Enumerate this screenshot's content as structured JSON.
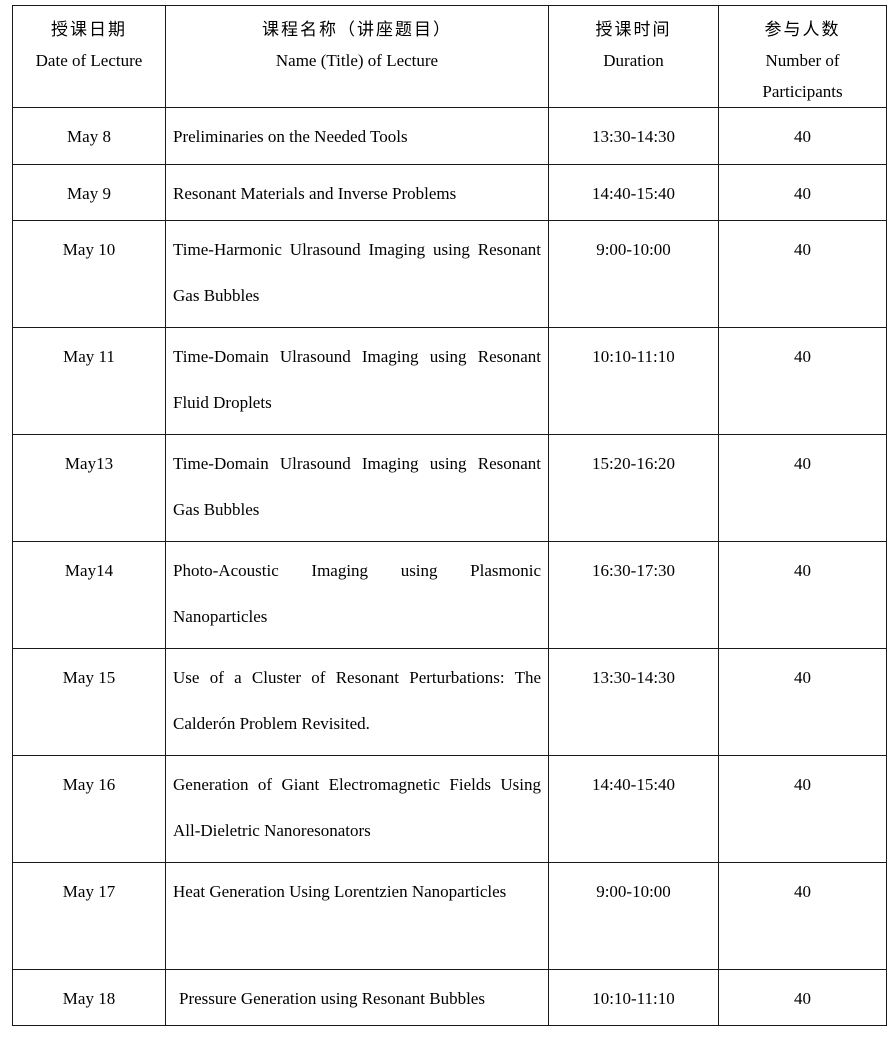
{
  "table": {
    "header": {
      "date_zh": "授课日期",
      "date_en": "Date of Lecture",
      "name_zh": "课程名称（讲座题目）",
      "name_en": "Name (Title) of Lecture",
      "duration_zh": "授课时间",
      "duration_en": "Duration",
      "participants_zh": "参与人数",
      "participants_en": "Number of Participants"
    },
    "rows": [
      {
        "date": "May 8",
        "name": "Preliminaries on the Needed Tools",
        "duration": "13:30-14:30",
        "participants": "40"
      },
      {
        "date": "May 9",
        "name": "Resonant Materials and Inverse Problems",
        "duration": "14:40-15:40",
        "participants": "40"
      },
      {
        "date": "May 10",
        "name": "Time-Harmonic Ulrasound Imaging using Resonant Gas Bubbles",
        "duration": "9:00-10:00",
        "participants": "40"
      },
      {
        "date": "May 11",
        "name": "Time-Domain Ulrasound Imaging using Resonant Fluid Droplets",
        "duration": "10:10-11:10",
        "participants": "40"
      },
      {
        "date": "May13",
        "name": "Time-Domain Ulrasound Imaging using Resonant Gas Bubbles",
        "duration": "15:20-16:20",
        "participants": "40"
      },
      {
        "date": "May14",
        "name": "Photo-Acoustic Imaging using Plasmonic Nanoparticles",
        "duration": "16:30-17:30",
        "participants": "40"
      },
      {
        "date": "May 15",
        "name": "Use of a Cluster of Resonant Perturbations: The Calderón Problem Revisited.",
        "duration": "13:30-14:30",
        "participants": "40"
      },
      {
        "date": "May 16",
        "name": "Generation of Giant Electromagnetic Fields Using All-Dieletric Nanoresonators",
        "duration": "14:40-15:40",
        "participants": "40"
      },
      {
        "date": "May 17",
        "name": "Heat Generation Using Lorentzien Nanoparticles",
        "duration": "9:00-10:00",
        "participants": "40"
      },
      {
        "date": "May 18",
        "name": "Pressure Generation using Resonant Bubbles",
        "duration": "10:10-11:10",
        "participants": "40"
      }
    ]
  }
}
